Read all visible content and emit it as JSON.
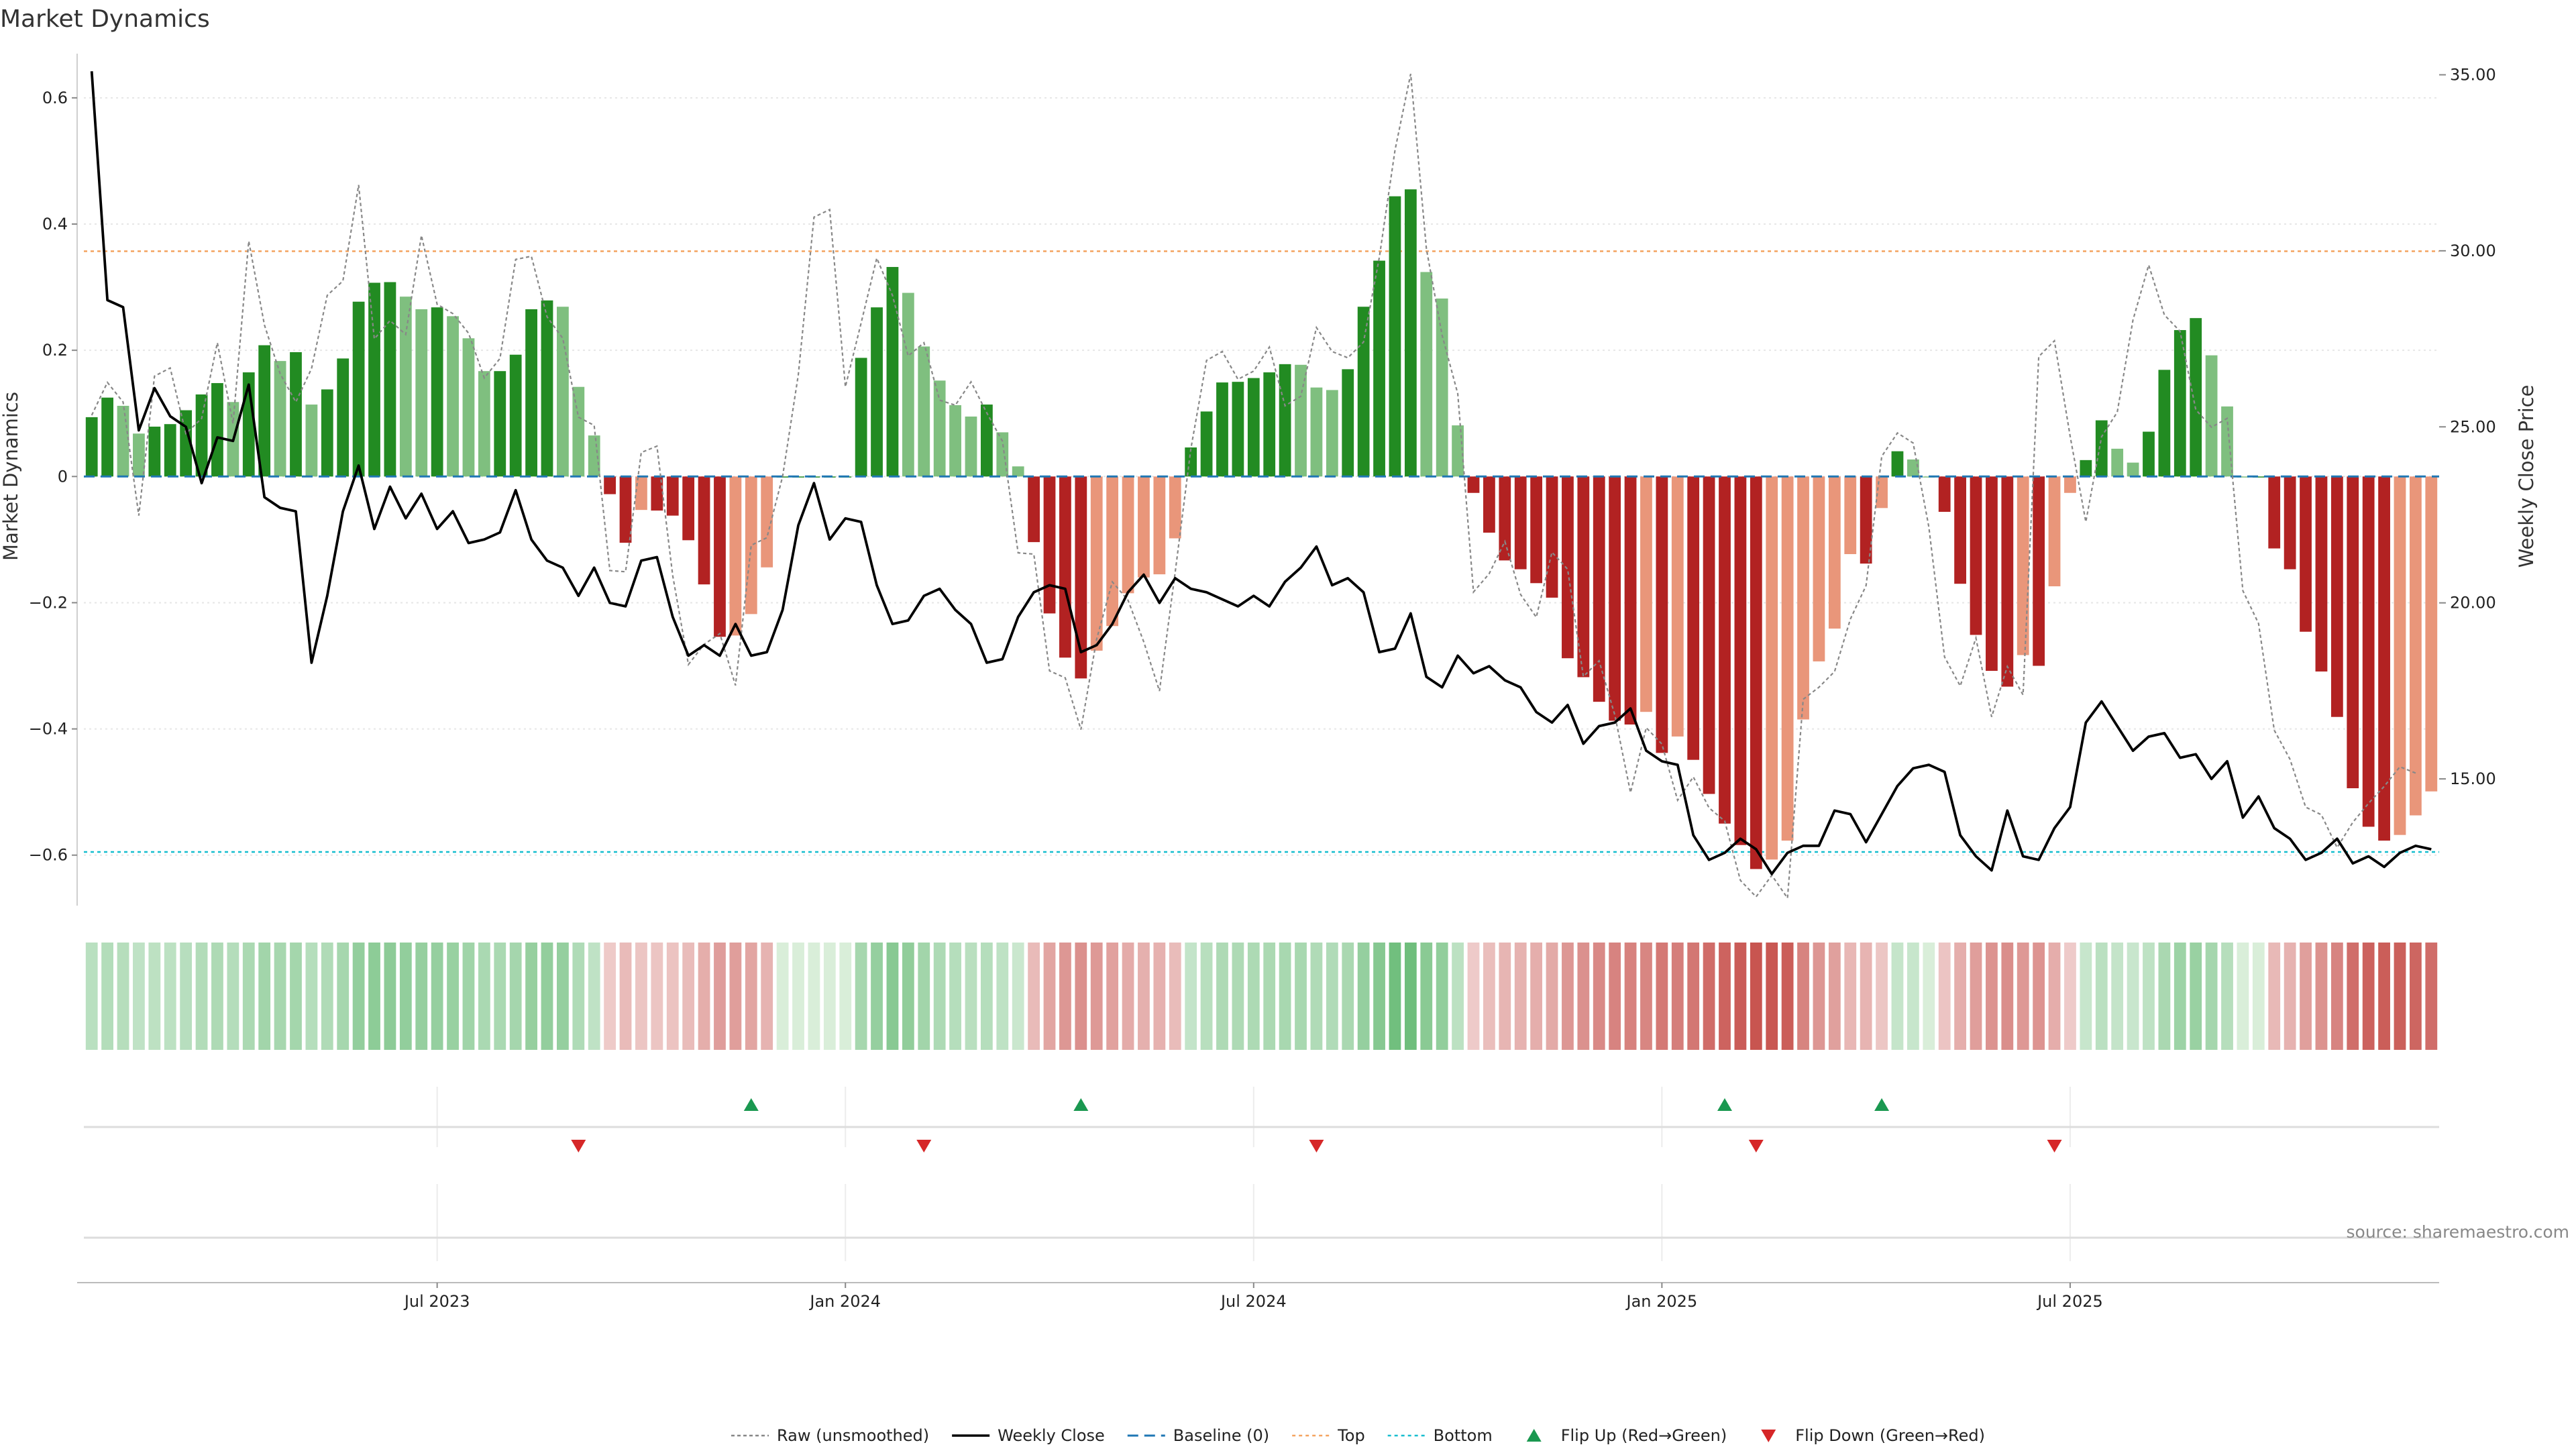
{
  "chart_data": {
    "type": "bar",
    "title": "Market Dynamics",
    "ylabel_left": "Market Dynamics",
    "ylabel_right": "Weekly Close Price",
    "source": "source: sharemaestro.com",
    "ylim_left": [
      -0.68,
      0.67
    ],
    "ylim_right": [
      11.4,
      35.6
    ],
    "left_ticks": [
      {
        "value": 0.6,
        "label": "0.6"
      },
      {
        "value": 0.4,
        "label": "0.4"
      },
      {
        "value": 0.2,
        "label": "0.2"
      },
      {
        "value": 0,
        "label": "0"
      },
      {
        "value": -0.2,
        "label": "−0.2"
      },
      {
        "value": -0.4,
        "label": "−0.4"
      },
      {
        "value": -0.6,
        "label": "−0.6"
      }
    ],
    "right_ticks": [
      {
        "value": 35,
        "label": "35.00"
      },
      {
        "value": 30,
        "label": "30.00"
      },
      {
        "value": 25,
        "label": "25.00"
      },
      {
        "value": 20,
        "label": "20.00"
      },
      {
        "value": 15,
        "label": "15.00"
      }
    ],
    "x_ticks": [
      {
        "week": 22,
        "label": "Jul 2023"
      },
      {
        "week": 48,
        "label": "Jan 2024"
      },
      {
        "week": 74,
        "label": "Jul 2024"
      },
      {
        "week": 100,
        "label": "Jan 2025"
      },
      {
        "week": 126,
        "label": "Jul 2025"
      }
    ],
    "top_threshold": 0.357,
    "bottom_threshold": -0.595,
    "smoothed": [
      0.094,
      0.125,
      0.112,
      0.068,
      0.079,
      0.083,
      0.105,
      0.13,
      0.148,
      0.118,
      0.165,
      0.208,
      0.183,
      0.197,
      0.114,
      0.138,
      0.187,
      0.277,
      0.307,
      0.308,
      0.285,
      0.265,
      0.268,
      0.254,
      0.219,
      0.167,
      0.167,
      0.193,
      0.265,
      0.279,
      0.269,
      0.142,
      0.065,
      -0.028,
      -0.105,
      -0.053,
      -0.054,
      -0.062,
      -0.101,
      -0.171,
      -0.254,
      -0.252,
      -0.218,
      -0.144,
      0.0,
      0.0,
      0.0,
      0.0,
      0.0,
      0.188,
      0.268,
      0.332,
      0.291,
      0.206,
      0.152,
      0.113,
      0.095,
      0.114,
      0.07,
      0.016,
      -0.104,
      -0.217,
      -0.287,
      -0.32,
      -0.276,
      -0.237,
      -0.185,
      -0.16,
      -0.155,
      -0.098,
      0.046,
      0.103,
      0.149,
      0.15,
      0.156,
      0.165,
      0.178,
      0.177,
      0.141,
      0.137,
      0.17,
      0.269,
      0.342,
      0.444,
      0.455,
      0.324,
      0.282,
      0.081,
      -0.026,
      -0.089,
      -0.133,
      -0.147,
      -0.169,
      -0.192,
      -0.288,
      -0.318,
      -0.357,
      -0.387,
      -0.393,
      -0.373,
      -0.438,
      -0.412,
      -0.449,
      -0.503,
      -0.55,
      -0.584,
      -0.622,
      -0.607,
      -0.577,
      -0.385,
      -0.293,
      -0.241,
      -0.123,
      -0.138,
      -0.05,
      0.04,
      0.027,
      0.0,
      -0.056,
      -0.17,
      -0.251,
      -0.308,
      -0.333,
      -0.283,
      -0.3,
      -0.174,
      -0.026,
      0.026,
      0.089,
      0.044,
      0.022,
      0.071,
      0.169,
      0.232,
      0.251,
      0.192,
      0.111,
      0.0,
      0.0,
      -0.114,
      -0.147,
      -0.246,
      -0.309,
      -0.381,
      -0.494,
      -0.555,
      -0.577,
      -0.568,
      -0.537,
      -0.499
    ],
    "raw": [
      0.097,
      0.149,
      0.118,
      -0.062,
      0.159,
      0.172,
      0.068,
      0.092,
      0.212,
      0.084,
      0.373,
      0.24,
      0.163,
      0.118,
      0.171,
      0.287,
      0.31,
      0.462,
      0.218,
      0.247,
      0.225,
      0.382,
      0.273,
      0.258,
      0.227,
      0.156,
      0.187,
      0.344,
      0.349,
      0.253,
      0.219,
      0.094,
      0.081,
      -0.149,
      -0.151,
      0.038,
      0.048,
      -0.157,
      -0.298,
      -0.266,
      -0.249,
      -0.331,
      -0.109,
      -0.097,
      0.0,
      0.161,
      0.411,
      0.423,
      0.142,
      0.243,
      0.346,
      0.287,
      0.191,
      0.212,
      0.121,
      0.113,
      0.15,
      0.101,
      0.056,
      -0.121,
      -0.123,
      -0.308,
      -0.319,
      -0.401,
      -0.258,
      -0.167,
      -0.196,
      -0.262,
      -0.34,
      -0.152,
      0.044,
      0.184,
      0.198,
      0.154,
      0.167,
      0.205,
      0.112,
      0.127,
      0.236,
      0.198,
      0.188,
      0.213,
      0.347,
      0.517,
      0.638,
      0.361,
      0.224,
      0.131,
      -0.183,
      -0.154,
      -0.103,
      -0.187,
      -0.223,
      -0.12,
      -0.147,
      -0.317,
      -0.292,
      -0.378,
      -0.501,
      -0.398,
      -0.424,
      -0.513,
      -0.476,
      -0.525,
      -0.546,
      -0.64,
      -0.666,
      -0.632,
      -0.668,
      -0.353,
      -0.334,
      -0.309,
      -0.226,
      -0.173,
      0.032,
      0.069,
      0.053,
      -0.08,
      -0.286,
      -0.332,
      -0.256,
      -0.381,
      -0.301,
      -0.346,
      0.19,
      0.215,
      0.064,
      -0.072,
      0.063,
      0.102,
      0.248,
      0.335,
      0.256,
      0.23,
      0.106,
      0.078,
      0.092,
      -0.181,
      -0.233,
      -0.402,
      -0.448,
      -0.524,
      -0.536,
      -0.588,
      -0.548,
      -0.518,
      -0.491,
      -0.46,
      -0.47
    ],
    "close": [
      35.1,
      28.6,
      28.4,
      24.9,
      26.1,
      25.3,
      25.0,
      23.4,
      24.7,
      24.6,
      26.2,
      23.0,
      22.7,
      22.6,
      18.3,
      20.2,
      22.6,
      23.9,
      22.1,
      23.3,
      22.4,
      23.1,
      22.1,
      22.6,
      21.7,
      21.8,
      22.0,
      23.2,
      21.8,
      21.2,
      21.0,
      20.2,
      21.0,
      20.0,
      19.9,
      21.2,
      21.3,
      19.6,
      18.5,
      18.8,
      18.5,
      19.4,
      18.5,
      18.6,
      19.8,
      22.2,
      23.4,
      21.8,
      22.4,
      22.3,
      20.5,
      19.4,
      19.5,
      20.2,
      20.4,
      19.8,
      19.4,
      18.3,
      18.4,
      19.6,
      20.3,
      20.5,
      20.4,
      18.6,
      18.8,
      19.4,
      20.3,
      20.8,
      20.0,
      20.7,
      20.4,
      20.3,
      20.1,
      19.9,
      20.2,
      19.9,
      20.6,
      21.0,
      21.6,
      20.5,
      20.7,
      20.3,
      18.6,
      18.7,
      19.7,
      17.9,
      17.6,
      18.5,
      18.0,
      18.2,
      17.8,
      17.6,
      16.9,
      16.6,
      17.1,
      16.0,
      16.5,
      16.6,
      17.0,
      15.8,
      15.5,
      15.4,
      13.4,
      12.7,
      12.9,
      13.3,
      13.0,
      12.3,
      12.9,
      13.1,
      13.1,
      14.1,
      14.0,
      13.2,
      14.0,
      14.8,
      15.3,
      15.4,
      15.2,
      13.4,
      12.8,
      12.4,
      14.1,
      12.8,
      12.7,
      13.6,
      14.2,
      16.6,
      17.2,
      16.5,
      15.8,
      16.2,
      16.3,
      15.6,
      15.7,
      15.0,
      15.5,
      13.9,
      14.5,
      13.6,
      13.3,
      12.7,
      12.9,
      13.3,
      12.6,
      12.8,
      12.5,
      12.9,
      13.1,
      13.0
    ],
    "flip_up_weeks": [
      42,
      63,
      104,
      114
    ],
    "flip_down_weeks": [
      31,
      53,
      78,
      106,
      125
    ],
    "legend": [
      {
        "key": "raw",
        "label": "Raw (unsmoothed)"
      },
      {
        "key": "close",
        "label": "Weekly Close"
      },
      {
        "key": "baseline",
        "label": "Baseline (0)"
      },
      {
        "key": "top",
        "label": "Top"
      },
      {
        "key": "bottom",
        "label": "Bottom"
      },
      {
        "key": "flip_up",
        "label": "Flip Up (Red→Green)"
      },
      {
        "key": "flip_down",
        "label": "Flip Down (Green→Red)"
      }
    ],
    "legend_position": "bottom-center",
    "grid": true,
    "colors": {
      "green_strong": "#228b22",
      "green_light": "#7fbf7f",
      "red_strong": "#b22222",
      "red_light": "#e9967a",
      "close": "#000000",
      "raw": "#888888",
      "baseline": "#1f77b4",
      "top": "#f4a460",
      "bottom": "#17becf",
      "flip_up": "#1a9850",
      "flip_down": "#d62728"
    }
  }
}
